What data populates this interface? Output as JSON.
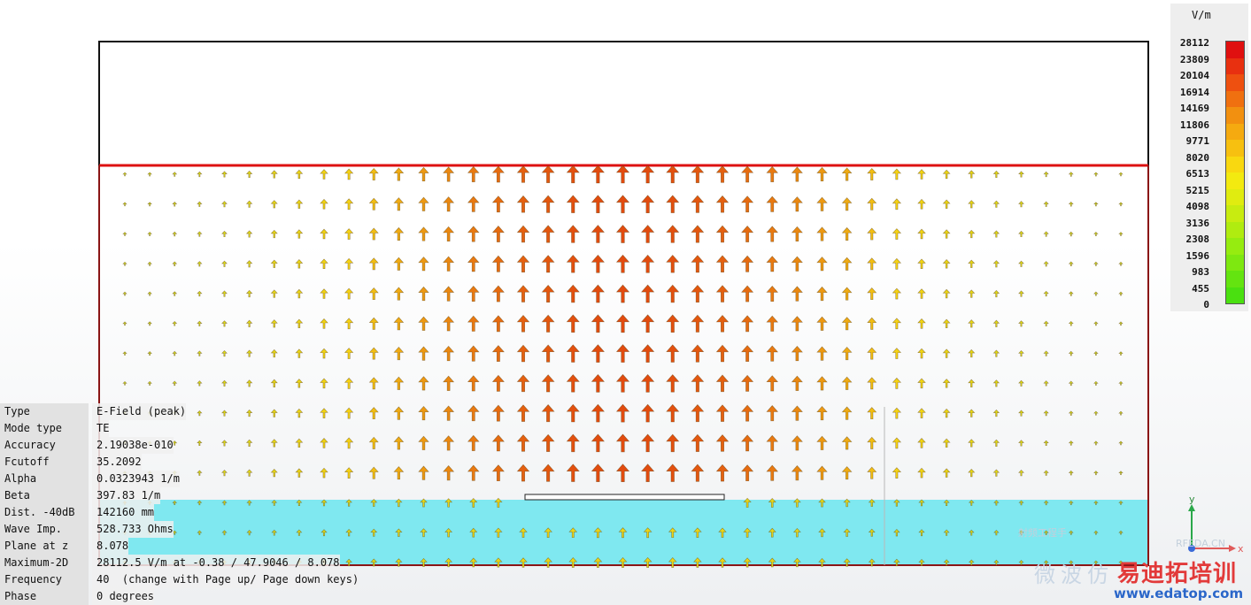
{
  "field_plot": {
    "columns": 41,
    "rows": 14,
    "dielectric_color": "#7fe8f0",
    "boundary_color": "#cc1111"
  },
  "legend": {
    "unit": "V/m",
    "ticks": [
      "28112",
      "23809",
      "20104",
      "16914",
      "14169",
      "11806",
      "9771",
      "8020",
      "6513",
      "5215",
      "4098",
      "3136",
      "2308",
      "1596",
      "983",
      "455",
      "0"
    ],
    "colors": [
      "#e01010",
      "#e83010",
      "#ee5010",
      "#f07010",
      "#f29010",
      "#f5aa10",
      "#f7c010",
      "#f9d810",
      "#f3ea10",
      "#e0ec10",
      "#c8ec10",
      "#b0ec10",
      "#96ec10",
      "#7ee810",
      "#64e410",
      "#4ae010"
    ]
  },
  "info": [
    {
      "key": "Type",
      "value": "E-Field (peak)"
    },
    {
      "key": "Mode type",
      "value": "TE"
    },
    {
      "key": "Accuracy",
      "value": "2.19038e-010"
    },
    {
      "key": "Fcutoff",
      "value": "35.2092"
    },
    {
      "key": "Alpha",
      "value": "0.0323943 1/m"
    },
    {
      "key": "Beta",
      "value": "397.83 1/m"
    },
    {
      "key": "Dist. -40dB",
      "value": "142160 mm"
    },
    {
      "key": "Wave Imp.",
      "value": "528.733 Ohms"
    },
    {
      "key": "Plane at z",
      "value": "8.078"
    },
    {
      "key": "Maximum-2D",
      "value": "28112.5 V/m at -0.38 / 47.9046 / 8.078"
    },
    {
      "key": "Frequency",
      "value": "40  (change with Page up/ Page down keys)"
    },
    {
      "key": "Phase",
      "value": "0 degrees"
    }
  ],
  "axes": {
    "y_label": "y",
    "x_label": "x"
  },
  "watermark": {
    "cn_brand": "易迪拓培训",
    "url": "www.edatop.com",
    "faint_text": "微波仿",
    "faint_small": "射频工程手",
    "faint_rf": "RFEDA.CN"
  }
}
